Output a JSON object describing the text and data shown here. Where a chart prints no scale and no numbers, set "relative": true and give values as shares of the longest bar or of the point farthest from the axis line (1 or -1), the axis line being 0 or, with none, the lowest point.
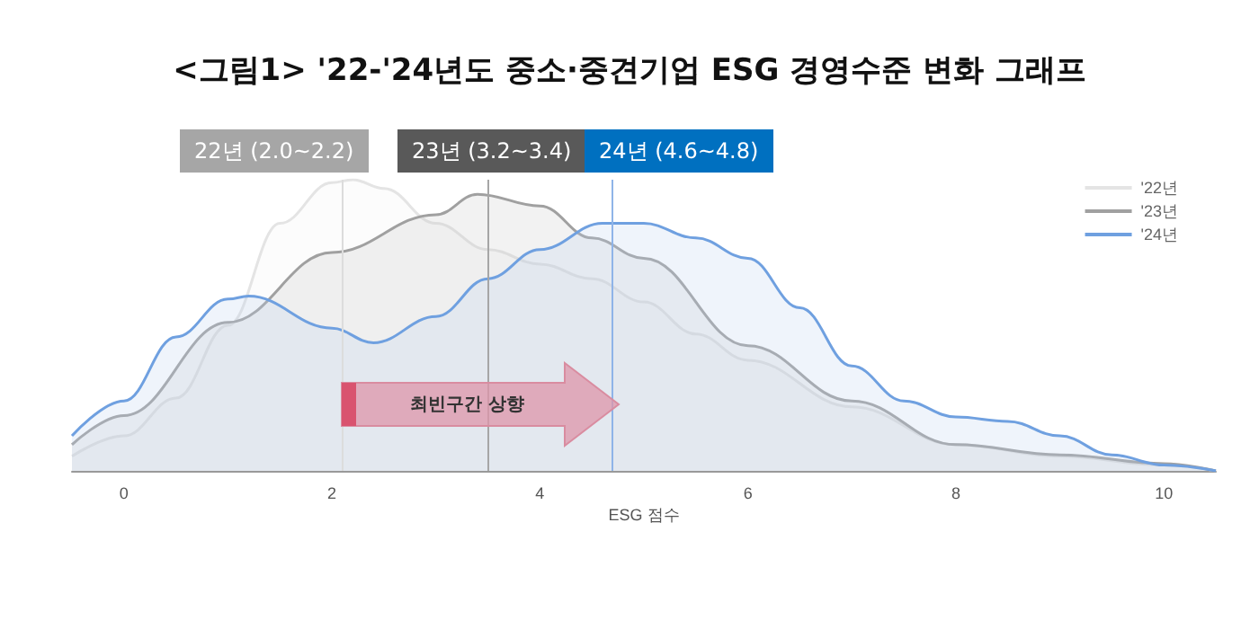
{
  "chart_data": {
    "type": "area",
    "title": "<그림1> '22-'24년도 중소·중견기업 ESG 경영수준 변화 그래프",
    "xlabel": "ESG 점수",
    "relative": true,
    "xlim": [
      -0.5,
      10.5
    ],
    "xticks": [
      0,
      2,
      4,
      6,
      8,
      10
    ],
    "legend": "top right",
    "marker": "none",
    "annotations": [
      "22년 (2.0~2.2)",
      "23년 (3.2~3.4)",
      "24년 (4.6~4.8)",
      "최빈구간 상향"
    ],
    "ref_lines": [
      {
        "axis": "x",
        "value": 2.1,
        "color": "#dcdcdc"
      },
      {
        "axis": "x",
        "value": 3.5,
        "color": "#a6a6a6"
      },
      {
        "axis": "x",
        "value": 4.7,
        "color": "#8fb4e8"
      }
    ],
    "series": [
      {
        "name": "'22년",
        "color": "#e4e4e4",
        "x": [
          -0.5,
          0,
          0.5,
          1,
          1.5,
          2,
          2.2,
          2.5,
          3,
          3.5,
          4,
          4.5,
          5,
          5.5,
          6,
          7,
          8,
          9,
          10,
          10.5
        ],
        "values": [
          0.05,
          0.12,
          0.25,
          0.5,
          0.85,
          0.99,
          1.0,
          0.97,
          0.85,
          0.76,
          0.71,
          0.66,
          0.58,
          0.47,
          0.38,
          0.22,
          0.09,
          0.05,
          0.02,
          0
        ]
      },
      {
        "name": "'23년",
        "color": "#a0a0a0",
        "x": [
          -0.5,
          0,
          1,
          2,
          3,
          3.4,
          4,
          4.5,
          5,
          6,
          7,
          8,
          9,
          10,
          10.5
        ],
        "values": [
          0.09,
          0.19,
          0.51,
          0.75,
          0.88,
          0.95,
          0.91,
          0.8,
          0.73,
          0.43,
          0.24,
          0.09,
          0.055,
          0.025,
          0
        ]
      },
      {
        "name": "'24년",
        "color": "#6fa0e0",
        "x": [
          -0.5,
          0,
          0.5,
          1,
          1.2,
          2,
          2.4,
          3,
          3.5,
          4,
          4.6,
          5,
          5.5,
          6,
          6.5,
          7,
          7.5,
          8,
          8.5,
          9,
          9.5,
          10,
          10.5
        ],
        "values": [
          0.12,
          0.24,
          0.46,
          0.59,
          0.6,
          0.49,
          0.44,
          0.53,
          0.66,
          0.76,
          0.85,
          0.85,
          0.8,
          0.73,
          0.56,
          0.36,
          0.24,
          0.185,
          0.17,
          0.12,
          0.055,
          0.02,
          0
        ]
      }
    ]
  }
}
